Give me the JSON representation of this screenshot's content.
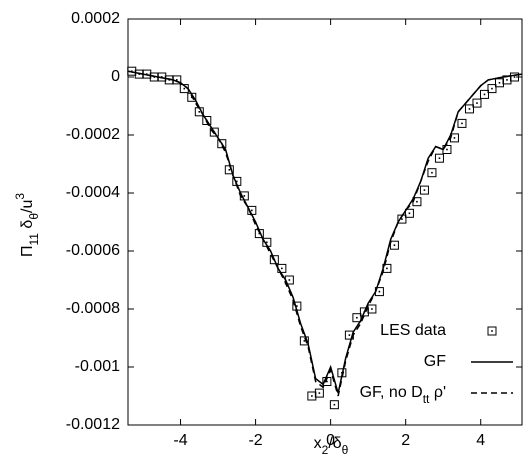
{
  "chart_data": {
    "type": "line",
    "x_label": [
      {
        "text": "x"
      },
      {
        "text": "2",
        "shift": "sub"
      },
      {
        "text": "/δ"
      },
      {
        "text": "θ",
        "shift": "sub"
      }
    ],
    "y_label": [
      {
        "text": "Π"
      },
      {
        "text": "11",
        "shift": "sub"
      },
      {
        "text": " δ"
      },
      {
        "text": "θ",
        "shift": "sub"
      },
      {
        "text": "/u"
      },
      {
        "text": "3",
        "shift": "sup"
      }
    ],
    "xlim": [
      -5.4,
      5.1
    ],
    "ylim": [
      -0.0012,
      0.0002
    ],
    "xticks": [
      -4,
      -2,
      0,
      2,
      4
    ],
    "yticks": [
      0.0002,
      0,
      -0.0002,
      -0.0004,
      -0.0006,
      -0.0008,
      -0.001,
      -0.0012
    ],
    "legend": "lower right",
    "series": [
      {
        "name": [
          {
            "text": "LES data"
          }
        ],
        "style": "markers",
        "color": "#000000",
        "x": [
          -5.3,
          -5.1,
          -4.9,
          -4.7,
          -4.5,
          -4.3,
          -4.1,
          -3.9,
          -3.7,
          -3.5,
          -3.3,
          -3.1,
          -2.9,
          -2.7,
          -2.5,
          -2.3,
          -2.1,
          -1.9,
          -1.7,
          -1.5,
          -1.3,
          -1.1,
          -0.9,
          -0.7,
          -0.5,
          -0.3,
          -0.1,
          0.1,
          0.3,
          0.5,
          0.7,
          0.9,
          1.1,
          1.3,
          1.5,
          1.7,
          1.9,
          2.1,
          2.3,
          2.5,
          2.7,
          2.9,
          3.1,
          3.3,
          3.5,
          3.7,
          3.9,
          4.1,
          4.3,
          4.5,
          4.7,
          4.9
        ],
        "values": [
          2e-05,
          1e-05,
          1e-05,
          0,
          0,
          -1e-05,
          -1e-05,
          -4e-05,
          -7e-05,
          -0.00012,
          -0.00015,
          -0.00019,
          -0.00023,
          -0.00032,
          -0.00036,
          -0.00041,
          -0.00046,
          -0.00054,
          -0.00057,
          -0.00063,
          -0.00066,
          -0.0007,
          -0.00079,
          -0.00091,
          -0.0011,
          -0.00109,
          -0.00105,
          -0.00113,
          -0.00102,
          -0.00089,
          -0.00083,
          -0.00081,
          -0.0008,
          -0.00074,
          -0.00066,
          -0.00058,
          -0.00049,
          -0.00047,
          -0.00043,
          -0.00039,
          -0.00033,
          -0.00028,
          -0.00025,
          -0.00021,
          -0.00016,
          -0.00011,
          -9e-05,
          -6e-05,
          -4e-05,
          -2e-05,
          -1e-05,
          0
        ]
      },
      {
        "name": [
          {
            "text": "GF"
          }
        ],
        "style": "solid",
        "color": "#000000",
        "x": [
          -5.4,
          -5,
          -4.6,
          -4.2,
          -4,
          -3.8,
          -3.6,
          -3.4,
          -3.2,
          -3,
          -2.8,
          -2.6,
          -2.4,
          -2.2,
          -2,
          -1.8,
          -1.6,
          -1.4,
          -1.2,
          -1,
          -0.8,
          -0.6,
          -0.4,
          -0.2,
          0,
          0.2,
          0.4,
          0.6,
          0.8,
          1,
          1.2,
          1.4,
          1.6,
          1.8,
          2,
          2.2,
          2.4,
          2.6,
          2.8,
          3,
          3.2,
          3.4,
          3.6,
          3.8,
          4,
          4.2,
          4.6,
          5.1
        ],
        "values": [
          2e-05,
          1e-05,
          0,
          -1e-05,
          -2e-05,
          -4e-05,
          -8e-05,
          -0.00013,
          -0.00017,
          -0.00021,
          -0.00025,
          -0.00034,
          -0.0004,
          -0.00045,
          -0.0005,
          -0.00056,
          -0.0006,
          -0.00066,
          -0.0007,
          -0.00076,
          -0.00085,
          -0.00092,
          -0.00104,
          -0.00106,
          -0.001,
          -0.00109,
          -0.00097,
          -0.00088,
          -0.00084,
          -0.00078,
          -0.00074,
          -0.00066,
          -0.00056,
          -0.0005,
          -0.00046,
          -0.00042,
          -0.00036,
          -0.00028,
          -0.00024,
          -0.00025,
          -0.0002,
          -0.00012,
          -9e-05,
          -6e-05,
          -3e-05,
          -1e-05,
          0,
          1e-05
        ]
      },
      {
        "name": [
          {
            "text": "GF, no D"
          },
          {
            "text": "tt",
            "shift": "sub"
          },
          {
            "text": " ρ'"
          }
        ],
        "style": "dashed",
        "color": "#000000",
        "x": [
          -5.4,
          -5,
          -4.6,
          -4.2,
          -4,
          -3.8,
          -3.6,
          -3.4,
          -3.2,
          -3,
          -2.8,
          -2.6,
          -2.4,
          -2.2,
          -2,
          -1.8,
          -1.6,
          -1.4,
          -1.2,
          -1,
          -0.8,
          -0.6,
          -0.4,
          -0.2,
          0,
          0.2,
          0.4,
          0.6,
          0.8,
          1,
          1.2,
          1.4,
          1.6,
          1.8,
          2,
          2.2,
          2.4,
          2.6,
          2.8,
          3,
          3.2,
          3.4,
          3.6,
          3.8,
          4,
          4.2,
          4.6,
          5.1
        ],
        "values": [
          2e-05,
          1e-05,
          0,
          -1e-05,
          -2e-05,
          -4e-05,
          -9e-05,
          -0.00013,
          -0.00018,
          -0.00021,
          -0.00026,
          -0.00034,
          -0.00041,
          -0.00045,
          -0.00051,
          -0.00056,
          -0.00061,
          -0.00066,
          -0.00071,
          -0.00077,
          -0.00086,
          -0.00093,
          -0.00105,
          -0.00107,
          -0.00101,
          -0.0011,
          -0.00098,
          -0.00089,
          -0.00085,
          -0.00079,
          -0.00074,
          -0.00067,
          -0.00057,
          -0.0005,
          -0.00046,
          -0.00043,
          -0.00036,
          -0.00029,
          -0.00024,
          -0.00025,
          -0.00021,
          -0.00012,
          -9e-05,
          -6e-05,
          -3e-05,
          -1e-05,
          0,
          1e-05
        ]
      }
    ]
  }
}
